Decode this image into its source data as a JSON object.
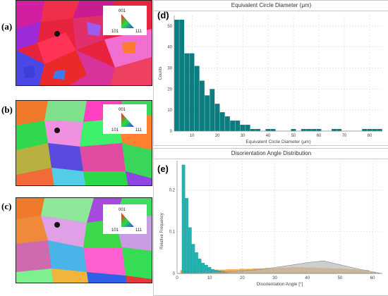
{
  "panels": {
    "a": "(a)",
    "b": "(b)",
    "c": "(c)",
    "d": "(d)",
    "e": "(e)"
  },
  "ipf_key": {
    "top": "001",
    "bottom_left": "101",
    "bottom_right": "111"
  },
  "colors": {
    "hist_d": "#0b7d80",
    "hist_e_teal": "#23b3b3",
    "hist_e_orange": "#f19c2b",
    "mackenzie": "#b9b9b9"
  },
  "chart_data": [
    {
      "type": "bar",
      "title": "Equivalent Circle Diameter (μm)",
      "xlabel": "Equivalent Circle Diameter (μm)",
      "ylabel": "Counts",
      "xlim": [
        3,
        85
      ],
      "ylim": [
        0,
        55
      ],
      "xticks": [
        10,
        20,
        30,
        40,
        50,
        60,
        70,
        80
      ],
      "yticks": [
        0,
        10,
        20,
        30,
        40,
        50
      ],
      "bin_width": 2,
      "bins": [
        {
          "x": 4,
          "y": 53
        },
        {
          "x": 6,
          "y": 53
        },
        {
          "x": 8,
          "y": 37
        },
        {
          "x": 10,
          "y": 37
        },
        {
          "x": 12,
          "y": 31
        },
        {
          "x": 14,
          "y": 24
        },
        {
          "x": 16,
          "y": 17
        },
        {
          "x": 18,
          "y": 20
        },
        {
          "x": 20,
          "y": 13
        },
        {
          "x": 22,
          "y": 9
        },
        {
          "x": 24,
          "y": 7
        },
        {
          "x": 26,
          "y": 5
        },
        {
          "x": 28,
          "y": 5
        },
        {
          "x": 30,
          "y": 3
        },
        {
          "x": 32,
          "y": 3
        },
        {
          "x": 34,
          "y": 1
        },
        {
          "x": 36,
          "y": 1
        },
        {
          "x": 38,
          "y": 0
        },
        {
          "x": 40,
          "y": 1
        },
        {
          "x": 42,
          "y": 1
        },
        {
          "x": 46,
          "y": 0
        },
        {
          "x": 50,
          "y": 1
        },
        {
          "x": 54,
          "y": 1
        },
        {
          "x": 56,
          "y": 1
        },
        {
          "x": 58,
          "y": 1
        },
        {
          "x": 60,
          "y": 1
        },
        {
          "x": 66,
          "y": 1
        },
        {
          "x": 68,
          "y": 1
        },
        {
          "x": 78,
          "y": 1
        },
        {
          "x": 80,
          "y": 1
        },
        {
          "x": 82,
          "y": 1
        },
        {
          "x": 84,
          "y": 1
        }
      ]
    },
    {
      "type": "bar",
      "title": "Disorientation Angle Distribution",
      "xlabel": "Disorientation Angle [°]",
      "ylabel": "Relative Frequency",
      "xlim": [
        0,
        63
      ],
      "ylim": [
        0,
        0.27
      ],
      "xticks": [
        0,
        10,
        20,
        30,
        40,
        50,
        60
      ],
      "yticks": [
        0,
        0.1,
        0.2
      ],
      "bin_width": 1,
      "series": [
        {
          "values": [
            {
              "x": 2,
              "y": 0.26
            },
            {
              "x": 3,
              "y": 0.18
            },
            {
              "x": 4,
              "y": 0.11
            },
            {
              "x": 5,
              "y": 0.07
            },
            {
              "x": 6,
              "y": 0.05
            },
            {
              "x": 7,
              "y": 0.035
            },
            {
              "x": 8,
              "y": 0.025
            },
            {
              "x": 9,
              "y": 0.02
            },
            {
              "x": 10,
              "y": 0.015
            },
            {
              "x": 11,
              "y": 0.01
            },
            {
              "x": 12,
              "y": 0.008
            },
            {
              "x": 13,
              "y": 0.006
            },
            {
              "x": 14,
              "y": 0.005
            },
            {
              "x": 15,
              "y": 0.004
            }
          ]
        },
        {
          "values": [
            {
              "x": 2,
              "y": 0.008
            },
            {
              "x": 4,
              "y": 0.008
            },
            {
              "x": 6,
              "y": 0.008
            },
            {
              "x": 8,
              "y": 0.008
            },
            {
              "x": 10,
              "y": 0.009
            },
            {
              "x": 12,
              "y": 0.009
            },
            {
              "x": 14,
              "y": 0.009
            },
            {
              "x": 16,
              "y": 0.01
            },
            {
              "x": 18,
              "y": 0.01
            },
            {
              "x": 20,
              "y": 0.011
            },
            {
              "x": 22,
              "y": 0.011
            },
            {
              "x": 24,
              "y": 0.012
            },
            {
              "x": 26,
              "y": 0.012
            },
            {
              "x": 28,
              "y": 0.013
            },
            {
              "x": 30,
              "y": 0.013
            },
            {
              "x": 32,
              "y": 0.014
            },
            {
              "x": 34,
              "y": 0.014
            },
            {
              "x": 36,
              "y": 0.015
            },
            {
              "x": 38,
              "y": 0.015
            },
            {
              "x": 40,
              "y": 0.014
            },
            {
              "x": 42,
              "y": 0.014
            },
            {
              "x": 44,
              "y": 0.013
            },
            {
              "x": 46,
              "y": 0.013
            },
            {
              "x": 48,
              "y": 0.012
            },
            {
              "x": 50,
              "y": 0.012
            },
            {
              "x": 52,
              "y": 0.011
            },
            {
              "x": 54,
              "y": 0.01
            },
            {
              "x": 56,
              "y": 0.009
            },
            {
              "x": 58,
              "y": 0.008
            },
            {
              "x": 60,
              "y": 0.004
            }
          ]
        }
      ],
      "mackenzie_curve": [
        {
          "x": 0,
          "y": 0
        },
        {
          "x": 15,
          "y": 0.003
        },
        {
          "x": 25,
          "y": 0.009
        },
        {
          "x": 35,
          "y": 0.02
        },
        {
          "x": 40,
          "y": 0.026
        },
        {
          "x": 45,
          "y": 0.03
        },
        {
          "x": 50,
          "y": 0.021
        },
        {
          "x": 55,
          "y": 0.012
        },
        {
          "x": 60,
          "y": 0.004
        },
        {
          "x": 62.8,
          "y": 0
        }
      ]
    }
  ]
}
